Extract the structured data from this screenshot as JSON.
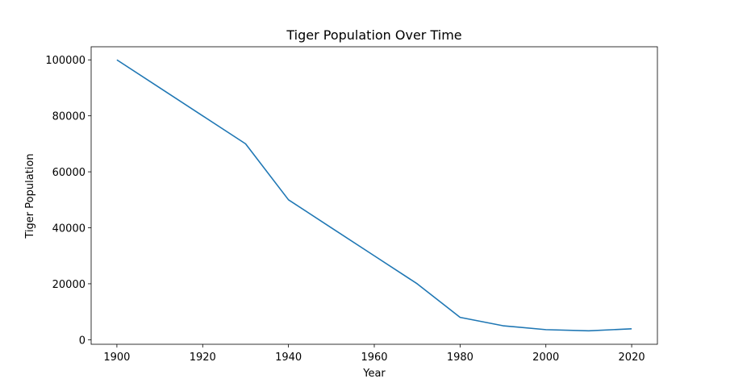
{
  "chart_data": {
    "type": "line",
    "title": "Tiger Population Over Time",
    "xlabel": "Year",
    "ylabel": "Tiger Population",
    "xlim": [
      1894,
      2026
    ],
    "ylim": [
      -1620,
      104680
    ],
    "x_ticks": [
      1900,
      1920,
      1940,
      1960,
      1980,
      2000,
      2020
    ],
    "y_ticks": [
      0,
      20000,
      40000,
      60000,
      80000,
      100000
    ],
    "grid": false,
    "series": [
      {
        "color": "#1f77b4",
        "x": [
          1900,
          1910,
          1920,
          1930,
          1940,
          1950,
          1960,
          1970,
          1980,
          1990,
          2000,
          2010,
          2020
        ],
        "y": [
          100000,
          90000,
          80000,
          70000,
          50000,
          40000,
          30000,
          20000,
          8000,
          5000,
          3600,
          3200,
          3900
        ]
      }
    ]
  }
}
